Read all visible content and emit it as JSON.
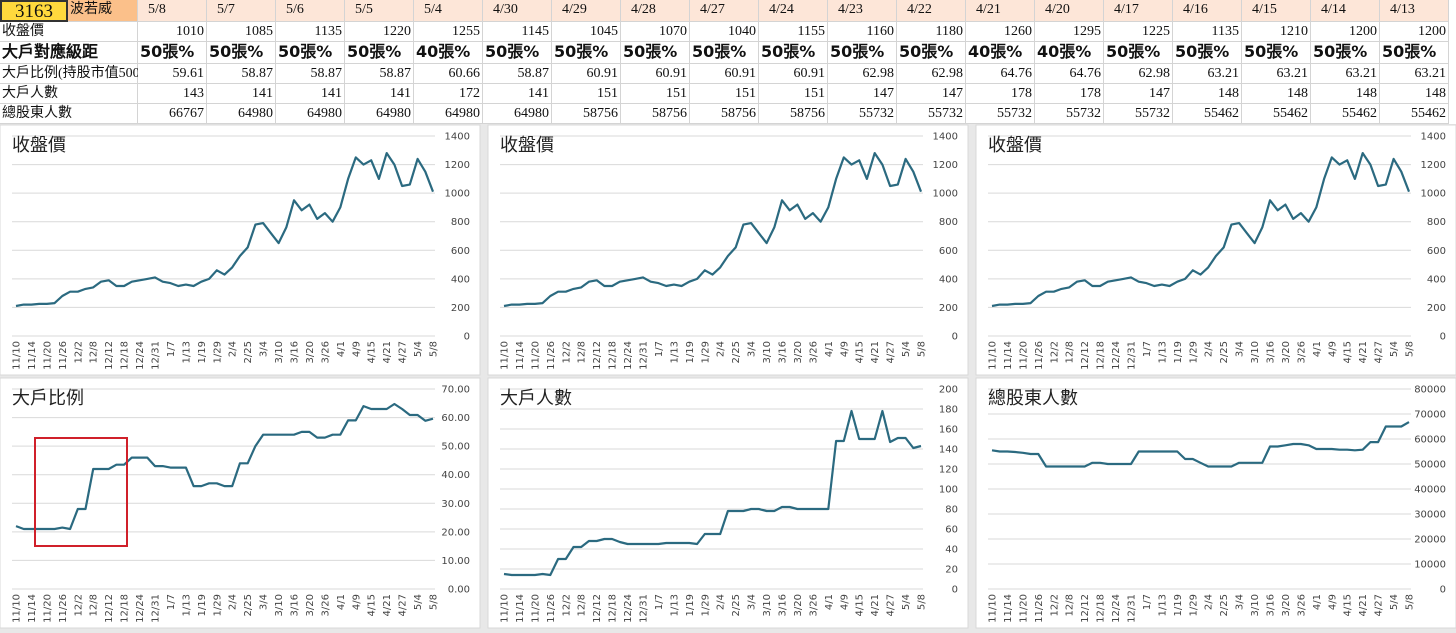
{
  "table": {
    "code": "3163",
    "name": "波若威",
    "dates": [
      "5/8",
      "5/7",
      "5/6",
      "5/5",
      "5/4",
      "4/30",
      "4/29",
      "4/28",
      "4/27",
      "4/24",
      "4/23",
      "4/22",
      "4/21",
      "4/20",
      "4/17",
      "4/16",
      "4/15",
      "4/14",
      "4/13"
    ],
    "rows": [
      {
        "label": "收盤價",
        "values": [
          1010,
          1085,
          1135,
          1220,
          1255,
          1145,
          1045,
          1070,
          1040,
          1155,
          1160,
          1180,
          1260,
          1295,
          1225,
          1135,
          1210,
          1200,
          1200
        ]
      },
      {
        "label": "大戶對應級距",
        "values": [
          "50張%",
          "50張%",
          "50張%",
          "50張%",
          "40張%",
          "50張%",
          "50張%",
          "50張%",
          "50張%",
          "50張%",
          "50張%",
          "50張%",
          "40張%",
          "40張%",
          "50張%",
          "50張%",
          "50張%",
          "50張%",
          "50張%"
        ]
      },
      {
        "label": "大戶比例(持股市值500",
        "values": [
          59.61,
          58.87,
          58.87,
          58.87,
          60.66,
          58.87,
          60.91,
          60.91,
          60.91,
          60.91,
          62.98,
          62.98,
          64.76,
          64.76,
          62.98,
          63.21,
          63.21,
          63.21,
          63.21
        ]
      },
      {
        "label": "大戶人數",
        "values": [
          143,
          141,
          141,
          141,
          172,
          141,
          151,
          151,
          151,
          151,
          147,
          147,
          178,
          178,
          147,
          148,
          148,
          148,
          148
        ]
      },
      {
        "label": "總股東人數",
        "values": [
          66767,
          64980,
          64980,
          64980,
          64980,
          64980,
          58756,
          58756,
          58756,
          58756,
          55732,
          55732,
          55732,
          55732,
          55732,
          55462,
          55462,
          55462,
          55462
        ]
      }
    ]
  },
  "chart_data": [
    {
      "type": "line",
      "title": "收盤價",
      "color": "#2b6a80",
      "grid": true,
      "categories": [
        "11/10",
        null,
        "11/14",
        null,
        "11/20",
        null,
        "11/26",
        null,
        "12/2",
        null,
        "12/8",
        null,
        "12/12",
        null,
        "12/18",
        null,
        "12/24",
        null,
        "12/31",
        null,
        "1/7",
        null,
        "1/13",
        null,
        "1/19",
        null,
        "1/29",
        null,
        "2/4",
        null,
        "2/25",
        null,
        "3/4",
        null,
        "3/10",
        null,
        "3/16",
        null,
        "3/20",
        null,
        "3/26",
        null,
        "4/1",
        null,
        "4/9",
        null,
        "4/15",
        null,
        "4/21",
        null,
        "4/27",
        null,
        "5/4",
        null,
        "5/8"
      ],
      "values": [
        210,
        220,
        220,
        225,
        225,
        230,
        280,
        310,
        310,
        330,
        340,
        380,
        390,
        350,
        350,
        380,
        390,
        400,
        410,
        380,
        370,
        350,
        360,
        350,
        380,
        400,
        460,
        430,
        480,
        560,
        620,
        780,
        790,
        720,
        650,
        760,
        950,
        880,
        920,
        820,
        860,
        800,
        900,
        1100,
        1250,
        1200,
        1230,
        1100,
        1280,
        1200,
        1050,
        1060,
        1240,
        1150,
        1010
      ],
      "ylim": [
        0,
        1400
      ],
      "yticks": [
        0,
        200,
        400,
        600,
        800,
        1000,
        1200,
        1400
      ]
    },
    {
      "type": "line",
      "title": "收盤價",
      "color": "#2b6a80",
      "grid": true,
      "categories": [
        "11/10",
        null,
        "11/14",
        null,
        "11/20",
        null,
        "11/26",
        null,
        "12/2",
        null,
        "12/8",
        null,
        "12/12",
        null,
        "12/18",
        null,
        "12/24",
        null,
        "12/31",
        null,
        "1/7",
        null,
        "1/13",
        null,
        "1/19",
        null,
        "1/29",
        null,
        "2/4",
        null,
        "2/25",
        null,
        "3/4",
        null,
        "3/10",
        null,
        "3/16",
        null,
        "3/20",
        null,
        "3/26",
        null,
        "4/1",
        null,
        "4/9",
        null,
        "4/15",
        null,
        "4/21",
        null,
        "4/27",
        null,
        "5/4",
        null,
        "5/8"
      ],
      "values": [
        210,
        220,
        220,
        225,
        225,
        230,
        280,
        310,
        310,
        330,
        340,
        380,
        390,
        350,
        350,
        380,
        390,
        400,
        410,
        380,
        370,
        350,
        360,
        350,
        380,
        400,
        460,
        430,
        480,
        560,
        620,
        780,
        790,
        720,
        650,
        760,
        950,
        880,
        920,
        820,
        860,
        800,
        900,
        1100,
        1250,
        1200,
        1230,
        1100,
        1280,
        1200,
        1050,
        1060,
        1240,
        1150,
        1010
      ],
      "ylim": [
        0,
        1400
      ],
      "yticks": [
        0,
        200,
        400,
        600,
        800,
        1000,
        1200,
        1400
      ]
    },
    {
      "type": "line",
      "title": "收盤價",
      "color": "#2b6a80",
      "grid": true,
      "categories": [
        "11/10",
        null,
        "11/14",
        null,
        "11/20",
        null,
        "11/26",
        null,
        "12/2",
        null,
        "12/8",
        null,
        "12/12",
        null,
        "12/18",
        null,
        "12/24",
        null,
        "12/31",
        null,
        "1/7",
        null,
        "1/13",
        null,
        "1/19",
        null,
        "1/29",
        null,
        "2/4",
        null,
        "2/25",
        null,
        "3/4",
        null,
        "3/10",
        null,
        "3/16",
        null,
        "3/20",
        null,
        "3/26",
        null,
        "4/1",
        null,
        "4/9",
        null,
        "4/15",
        null,
        "4/21",
        null,
        "4/27",
        null,
        "5/4",
        null,
        "5/8"
      ],
      "values": [
        210,
        220,
        220,
        225,
        225,
        230,
        280,
        310,
        310,
        330,
        340,
        380,
        390,
        350,
        350,
        380,
        390,
        400,
        410,
        380,
        370,
        350,
        360,
        350,
        380,
        400,
        460,
        430,
        480,
        560,
        620,
        780,
        790,
        720,
        650,
        760,
        950,
        880,
        920,
        820,
        860,
        800,
        900,
        1100,
        1250,
        1200,
        1230,
        1100,
        1280,
        1200,
        1050,
        1060,
        1240,
        1150,
        1010
      ],
      "ylim": [
        0,
        1400
      ],
      "yticks": [
        0,
        200,
        400,
        600,
        800,
        1000,
        1200,
        1400
      ]
    },
    {
      "type": "line",
      "title": "大戶比例",
      "color": "#2b6a80",
      "grid": true,
      "categories": [
        "11/10",
        null,
        "11/14",
        null,
        "11/20",
        null,
        "11/26",
        null,
        "12/2",
        null,
        "12/8",
        null,
        "12/12",
        null,
        "12/18",
        null,
        "12/24",
        null,
        "12/31",
        null,
        "1/7",
        null,
        "1/13",
        null,
        "1/19",
        null,
        "1/29",
        null,
        "2/4",
        null,
        "2/25",
        null,
        "3/4",
        null,
        "3/10",
        null,
        "3/16",
        null,
        "3/20",
        null,
        "3/26",
        null,
        "4/1",
        null,
        "4/9",
        null,
        "4/15",
        null,
        "4/21",
        null,
        "4/27",
        null,
        "5/4",
        null,
        "5/8"
      ],
      "values": [
        22,
        21,
        21,
        21,
        21,
        21,
        21.5,
        21,
        28,
        28,
        42,
        42,
        42,
        43.5,
        43.5,
        46,
        46,
        46,
        43,
        43,
        42.5,
        42.5,
        42.5,
        36,
        36,
        37,
        37,
        36,
        36,
        44,
        44,
        50,
        54,
        54,
        54,
        54,
        54,
        55,
        55,
        53,
        53,
        54,
        54,
        59,
        59,
        64,
        63,
        63,
        63,
        64.76,
        63,
        60.91,
        60.91,
        58.87,
        59.61
      ],
      "ylim": [
        0,
        70
      ],
      "yticks": [
        {
          "value": 0,
          "label": "0.00"
        },
        {
          "value": 10,
          "label": "10.00"
        },
        {
          "value": 20,
          "label": "20.00"
        },
        {
          "value": 30,
          "label": "30.00"
        },
        {
          "value": 40,
          "label": "40.00"
        },
        {
          "value": 50,
          "label": "50.00"
        },
        {
          "value": 60,
          "label": "60.00"
        },
        {
          "value": 70,
          "label": "70.00"
        }
      ]
    },
    {
      "type": "line",
      "title": "大戶人數",
      "color": "#2b6a80",
      "grid": true,
      "categories": [
        "11/10",
        null,
        "11/14",
        null,
        "11/20",
        null,
        "11/26",
        null,
        "12/2",
        null,
        "12/8",
        null,
        "12/12",
        null,
        "12/18",
        null,
        "12/24",
        null,
        "12/31",
        null,
        "1/7",
        null,
        "1/13",
        null,
        "1/19",
        null,
        "1/29",
        null,
        "2/4",
        null,
        "2/25",
        null,
        "3/4",
        null,
        "3/10",
        null,
        "3/16",
        null,
        "3/20",
        null,
        "3/26",
        null,
        "4/1",
        null,
        "4/9",
        null,
        "4/15",
        null,
        "4/21",
        null,
        "4/27",
        null,
        "5/4",
        null,
        "5/8"
      ],
      "values": [
        15,
        14,
        14,
        14,
        14,
        15,
        14,
        30,
        30,
        42,
        42,
        48,
        48,
        50,
        50,
        47,
        45,
        45,
        45,
        45,
        45,
        46,
        46,
        46,
        46,
        45,
        55,
        55,
        55,
        78,
        78,
        78,
        80,
        80,
        78,
        78,
        82,
        82,
        80,
        80,
        80,
        80,
        80,
        148,
        148,
        178,
        150,
        150,
        150,
        178,
        147,
        151,
        151,
        141,
        143
      ],
      "ylim": [
        0,
        200
      ],
      "yticks": [
        0,
        20,
        40,
        60,
        80,
        100,
        120,
        140,
        160,
        180,
        200
      ]
    },
    {
      "type": "line",
      "title": "總股東人數",
      "color": "#2b6a80",
      "grid": true,
      "categories": [
        "11/10",
        null,
        "11/14",
        null,
        "11/20",
        null,
        "11/26",
        null,
        "12/2",
        null,
        "12/8",
        null,
        "12/12",
        null,
        "12/18",
        null,
        "12/24",
        null,
        "12/31",
        null,
        "1/7",
        null,
        "1/13",
        null,
        "1/19",
        null,
        "1/29",
        null,
        "2/4",
        null,
        "2/25",
        null,
        "3/4",
        null,
        "3/10",
        null,
        "3/16",
        null,
        "3/20",
        null,
        "3/26",
        null,
        "4/1",
        null,
        "4/9",
        null,
        "4/15",
        null,
        "4/21",
        null,
        "4/27",
        null,
        "5/4",
        null,
        "5/8"
      ],
      "values": [
        55500,
        55000,
        55000,
        54800,
        54500,
        54000,
        54000,
        49000,
        49000,
        49000,
        49000,
        49000,
        49000,
        50500,
        50500,
        50000,
        50000,
        50000,
        50000,
        55000,
        55000,
        55000,
        55000,
        55000,
        55000,
        52000,
        52000,
        50500,
        49000,
        49000,
        49000,
        49000,
        50500,
        50500,
        50500,
        50500,
        57000,
        57000,
        57500,
        58000,
        58000,
        57500,
        56000,
        56000,
        56000,
        55732,
        55732,
        55462,
        55732,
        58756,
        58756,
        64980,
        64980,
        64980,
        66767
      ],
      "ylim": [
        0,
        80000
      ],
      "yticks": [
        0,
        10000,
        20000,
        30000,
        40000,
        50000,
        60000,
        70000,
        80000
      ]
    }
  ]
}
